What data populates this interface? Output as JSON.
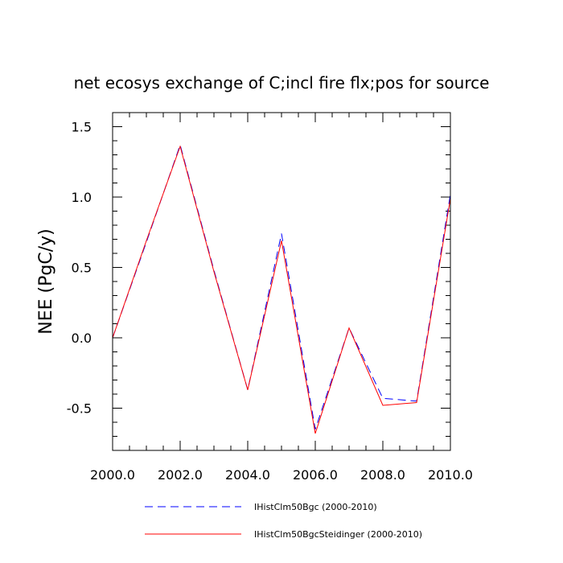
{
  "chart_data": {
    "type": "line",
    "title": "net ecosys exchange of C;incl fire flx;pos for source",
    "xlabel": "",
    "ylabel": "NEE  (PgC/y)",
    "xlim": [
      2000,
      2010
    ],
    "ylim": [
      -0.8,
      1.6
    ],
    "x_ticks": [
      2000,
      2002,
      2004,
      2006,
      2008,
      2010
    ],
    "x_tick_labels": [
      "2000.0",
      "2002.0",
      "2004.0",
      "2006.0",
      "2008.0",
      "2010.0"
    ],
    "y_ticks": [
      -0.5,
      0.0,
      0.5,
      1.0,
      1.5
    ],
    "y_tick_labels": [
      "-0.5",
      "0.0",
      "0.5",
      "1.0",
      "1.5"
    ],
    "grid": false,
    "legend_position": "bottom",
    "x": [
      2000,
      2001,
      2002,
      2003,
      2004,
      2005,
      2006,
      2007,
      2008,
      2009,
      2010
    ],
    "series": [
      {
        "name": "IHistClm50Bgc (2000-2010)",
        "color": "#0000ff",
        "style": "dashed",
        "values": [
          0.0,
          0.68,
          1.37,
          0.48,
          -0.37,
          0.74,
          -0.65,
          0.07,
          -0.43,
          -0.45,
          1.02
        ]
      },
      {
        "name": "IHistClm50BgcSteidinger (2000-2010)",
        "color": "#ff0000",
        "style": "solid",
        "values": [
          0.0,
          0.69,
          1.36,
          0.47,
          -0.37,
          0.69,
          -0.68,
          0.07,
          -0.48,
          -0.46,
          0.99
        ]
      }
    ]
  }
}
